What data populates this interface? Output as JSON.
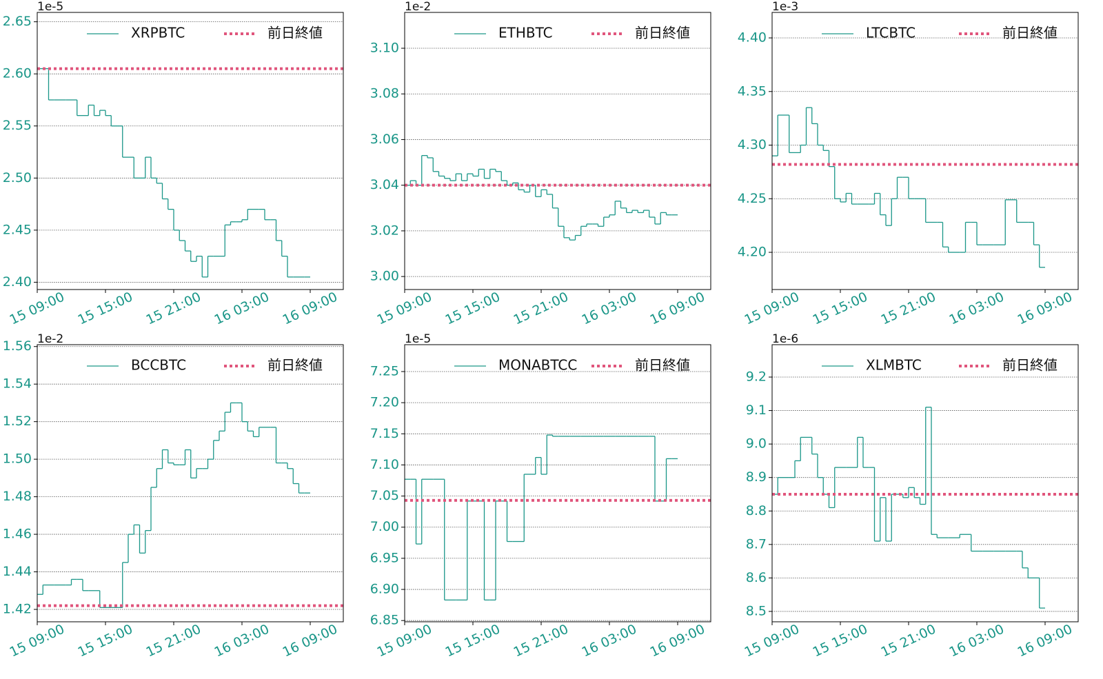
{
  "chart_data": [
    {
      "type": "line",
      "offset_label": "1e-5",
      "x": [
        "15 09:00",
        "15 09:30",
        "15 10:00",
        "15 10:30",
        "15 11:00",
        "15 11:30",
        "15 12:00",
        "15 12:30",
        "15 13:00",
        "15 13:30",
        "15 14:00",
        "15 14:30",
        "15 15:00",
        "15 15:30",
        "15 16:00",
        "15 16:30",
        "15 17:00",
        "15 17:30",
        "15 18:00",
        "15 18:30",
        "15 19:00",
        "15 19:30",
        "15 20:00",
        "15 20:30",
        "15 21:00",
        "15 21:30",
        "15 22:00",
        "15 22:30",
        "15 23:00",
        "15 23:30",
        "16 00:00",
        "16 00:30",
        "16 01:00",
        "16 01:30",
        "16 02:00",
        "16 02:30",
        "16 03:00",
        "16 03:30",
        "16 04:00",
        "16 04:30",
        "16 05:00",
        "16 05:30",
        "16 06:00",
        "16 06:30",
        "16 07:00",
        "16 07:30",
        "16 08:00",
        "16 08:30",
        "16 09:00"
      ],
      "xticks": [
        "15 09:00",
        "15 15:00",
        "15 21:00",
        "16 03:00",
        "16 09:00"
      ],
      "ylim": [
        2.393,
        2.659
      ],
      "yticks": [
        {
          "value": 2.4,
          "label": "2.40"
        },
        {
          "value": 2.45,
          "label": "2.45"
        },
        {
          "value": 2.5,
          "label": "2.50"
        },
        {
          "value": 2.55,
          "label": "2.55"
        },
        {
          "value": 2.6,
          "label": "2.60"
        },
        {
          "value": 2.65,
          "label": "2.65"
        }
      ],
      "grid": true,
      "legend": "upper right",
      "series": [
        {
          "name": "XRPBTC",
          "color": "#1a9688",
          "values": [
            2.605,
            2.605,
            2.575,
            2.575,
            2.575,
            2.575,
            2.575,
            2.56,
            2.56,
            2.57,
            2.56,
            2.565,
            2.56,
            2.55,
            2.55,
            2.52,
            2.52,
            2.5,
            2.5,
            2.52,
            2.5,
            2.495,
            2.48,
            2.47,
            2.45,
            2.44,
            2.43,
            2.42,
            2.425,
            2.405,
            2.425,
            2.425,
            2.425,
            2.455,
            2.458,
            2.458,
            2.46,
            2.47,
            2.47,
            2.47,
            2.46,
            2.46,
            2.44,
            2.425,
            2.405,
            2.405,
            2.405,
            2.405,
            null
          ]
        }
      ],
      "reference_line": {
        "name": "前日終値",
        "color": "#e0557c",
        "value": 2.605
      }
    },
    {
      "type": "line",
      "offset_label": "1e-2",
      "x": [
        "15 09:00",
        "15 09:30",
        "15 10:00",
        "15 10:30",
        "15 11:00",
        "15 11:30",
        "15 12:00",
        "15 12:30",
        "15 13:00",
        "15 13:30",
        "15 14:00",
        "15 14:30",
        "15 15:00",
        "15 15:30",
        "15 16:00",
        "15 16:30",
        "15 17:00",
        "15 17:30",
        "15 18:00",
        "15 18:30",
        "15 19:00",
        "15 19:30",
        "15 20:00",
        "15 20:30",
        "15 21:00",
        "15 21:30",
        "15 22:00",
        "15 22:30",
        "15 23:00",
        "15 23:30",
        "16 00:00",
        "16 00:30",
        "16 01:00",
        "16 01:30",
        "16 02:00",
        "16 02:30",
        "16 03:00",
        "16 03:30",
        "16 04:00",
        "16 04:30",
        "16 05:00",
        "16 05:30",
        "16 06:00",
        "16 06:30",
        "16 07:00",
        "16 07:30",
        "16 08:00",
        "16 08:30",
        "16 09:00"
      ],
      "xticks": [
        "15 09:00",
        "15 15:00",
        "15 21:00",
        "16 03:00",
        "16 09:00"
      ],
      "ylim": [
        2.9943,
        3.1157
      ],
      "yticks": [
        {
          "value": 3.0,
          "label": "3.00"
        },
        {
          "value": 3.02,
          "label": "3.02"
        },
        {
          "value": 3.04,
          "label": "3.04"
        },
        {
          "value": 3.06,
          "label": "3.06"
        },
        {
          "value": 3.08,
          "label": "3.08"
        },
        {
          "value": 3.1,
          "label": "3.10"
        }
      ],
      "grid": true,
      "legend": "upper right",
      "series": [
        {
          "name": "ETHBTC",
          "color": "#1a9688",
          "values": [
            3.04,
            3.042,
            3.04,
            3.053,
            3.052,
            3.046,
            3.044,
            3.043,
            3.042,
            3.045,
            3.042,
            3.045,
            3.044,
            3.047,
            3.043,
            3.047,
            3.046,
            3.042,
            3.04,
            3.041,
            3.038,
            3.037,
            3.04,
            3.035,
            3.038,
            3.036,
            3.03,
            3.022,
            3.017,
            3.016,
            3.018,
            3.022,
            3.023,
            3.023,
            3.022,
            3.026,
            3.027,
            3.033,
            3.03,
            3.028,
            3.029,
            3.028,
            3.029,
            3.026,
            3.023,
            3.028,
            3.027,
            3.027,
            null
          ]
        }
      ],
      "reference_line": {
        "name": "前日終値",
        "color": "#e0557c",
        "value": 3.04
      }
    },
    {
      "type": "line",
      "offset_label": "1e-3",
      "x": [
        "15 09:00",
        "15 09:30",
        "15 10:00",
        "15 10:30",
        "15 11:00",
        "15 11:30",
        "15 12:00",
        "15 12:30",
        "15 13:00",
        "15 13:30",
        "15 14:00",
        "15 14:30",
        "15 15:00",
        "15 15:30",
        "15 16:00",
        "15 16:30",
        "15 17:00",
        "15 17:30",
        "15 18:00",
        "15 18:30",
        "15 19:00",
        "15 19:30",
        "15 20:00",
        "15 20:30",
        "15 21:00",
        "15 21:30",
        "15 22:00",
        "15 22:30",
        "15 23:00",
        "15 23:30",
        "16 00:00",
        "16 00:30",
        "16 01:00",
        "16 01:30",
        "16 02:00",
        "16 02:30",
        "16 03:00",
        "16 03:30",
        "16 04:00",
        "16 04:30",
        "16 05:00",
        "16 05:30",
        "16 06:00",
        "16 06:30",
        "16 07:00",
        "16 07:30",
        "16 08:00",
        "16 08:30",
        "16 09:00"
      ],
      "xticks": [
        "15 09:00",
        "15 15:00",
        "15 21:00",
        "16 03:00",
        "16 09:00"
      ],
      "ylim": [
        4.1653,
        4.4238
      ],
      "yticks": [
        {
          "value": 4.2,
          "label": "4.20"
        },
        {
          "value": 4.25,
          "label": "4.25"
        },
        {
          "value": 4.3,
          "label": "4.30"
        },
        {
          "value": 4.35,
          "label": "4.35"
        },
        {
          "value": 4.4,
          "label": "4.40"
        }
      ],
      "grid": true,
      "legend": "upper right",
      "series": [
        {
          "name": "LTCBTC",
          "color": "#1a9688",
          "values": [
            4.29,
            4.328,
            4.328,
            4.293,
            4.293,
            4.3,
            4.335,
            4.32,
            4.3,
            4.295,
            4.28,
            4.25,
            4.247,
            4.255,
            4.245,
            4.245,
            4.245,
            4.245,
            4.255,
            4.235,
            4.225,
            4.25,
            4.27,
            4.27,
            4.25,
            4.25,
            4.25,
            4.228,
            4.228,
            4.228,
            4.205,
            4.2,
            4.2,
            4.2,
            4.228,
            4.228,
            4.207,
            4.207,
            4.207,
            4.207,
            4.207,
            4.249,
            4.249,
            4.228,
            4.228,
            4.228,
            4.207,
            4.186,
            null
          ]
        }
      ],
      "reference_line": {
        "name": "前日終値",
        "color": "#e0557c",
        "value": 4.282
      }
    },
    {
      "type": "line",
      "offset_label": "1e-2",
      "x": [
        "15 09:00",
        "15 09:30",
        "15 10:00",
        "15 10:30",
        "15 11:00",
        "15 11:30",
        "15 12:00",
        "15 12:30",
        "15 13:00",
        "15 13:30",
        "15 14:00",
        "15 14:30",
        "15 15:00",
        "15 15:30",
        "15 16:00",
        "15 16:30",
        "15 17:00",
        "15 17:30",
        "15 18:00",
        "15 18:30",
        "15 19:00",
        "15 19:30",
        "15 20:00",
        "15 20:30",
        "15 21:00",
        "15 21:30",
        "15 22:00",
        "15 22:30",
        "15 23:00",
        "15 23:30",
        "16 00:00",
        "16 00:30",
        "16 01:00",
        "16 01:30",
        "16 02:00",
        "16 02:30",
        "16 03:00",
        "16 03:30",
        "16 04:00",
        "16 04:30",
        "16 05:00",
        "16 05:30",
        "16 06:00",
        "16 06:30",
        "16 07:00",
        "16 07:30",
        "16 08:00",
        "16 08:30",
        "16 09:00"
      ],
      "xticks": [
        "15 09:00",
        "15 15:00",
        "15 21:00",
        "16 03:00",
        "16 09:00"
      ],
      "ylim": [
        1.4134,
        1.561
      ],
      "yticks": [
        {
          "value": 1.42,
          "label": "1.42"
        },
        {
          "value": 1.44,
          "label": "1.44"
        },
        {
          "value": 1.46,
          "label": "1.46"
        },
        {
          "value": 1.48,
          "label": "1.48"
        },
        {
          "value": 1.5,
          "label": "1.50"
        },
        {
          "value": 1.52,
          "label": "1.52"
        },
        {
          "value": 1.54,
          "label": "1.54"
        },
        {
          "value": 1.56,
          "label": "1.56"
        }
      ],
      "grid": true,
      "legend": "upper right",
      "series": [
        {
          "name": "BCCBTC",
          "color": "#1a9688",
          "values": [
            1.428,
            1.433,
            1.433,
            1.433,
            1.433,
            1.433,
            1.436,
            1.436,
            1.43,
            1.43,
            1.43,
            1.421,
            1.421,
            1.421,
            1.421,
            1.445,
            1.46,
            1.465,
            1.45,
            1.462,
            1.485,
            1.495,
            1.505,
            1.498,
            1.497,
            1.497,
            1.505,
            1.49,
            1.495,
            1.495,
            1.5,
            1.51,
            1.515,
            1.525,
            1.53,
            1.53,
            1.52,
            1.515,
            1.512,
            1.517,
            1.517,
            1.517,
            1.498,
            1.498,
            1.495,
            1.487,
            1.482,
            1.482,
            null
          ]
        }
      ],
      "reference_line": {
        "name": "前日終値",
        "color": "#e0557c",
        "value": 1.422
      }
    },
    {
      "type": "line",
      "offset_label": "1e-5",
      "x": [
        "15 09:00",
        "15 09:30",
        "15 10:00",
        "15 10:30",
        "15 11:00",
        "15 11:30",
        "15 12:00",
        "15 12:30",
        "15 13:00",
        "15 13:30",
        "15 14:00",
        "15 14:30",
        "15 15:00",
        "15 15:30",
        "15 16:00",
        "15 16:30",
        "15 17:00",
        "15 17:30",
        "15 18:00",
        "15 18:30",
        "15 19:00",
        "15 19:30",
        "15 20:00",
        "15 20:30",
        "15 21:00",
        "15 21:30",
        "15 22:00",
        "15 22:30",
        "15 23:00",
        "15 23:30",
        "16 00:00",
        "16 00:30",
        "16 01:00",
        "16 01:30",
        "16 02:00",
        "16 02:30",
        "16 03:00",
        "16 03:30",
        "16 04:00",
        "16 04:30",
        "16 05:00",
        "16 05:30",
        "16 06:00",
        "16 06:30",
        "16 07:00",
        "16 07:30",
        "16 08:00",
        "16 08:30",
        "16 09:00"
      ],
      "xticks": [
        "15 09:00",
        "15 15:00",
        "15 21:00",
        "16 03:00",
        "16 09:00"
      ],
      "ylim": [
        6.848,
        7.2932
      ],
      "yticks": [
        {
          "value": 6.85,
          "label": "6.85"
        },
        {
          "value": 6.9,
          "label": "6.90"
        },
        {
          "value": 6.95,
          "label": "6.95"
        },
        {
          "value": 7.0,
          "label": "7.00"
        },
        {
          "value": 7.05,
          "label": "7.05"
        },
        {
          "value": 7.1,
          "label": "7.10"
        },
        {
          "value": 7.15,
          "label": "7.15"
        },
        {
          "value": 7.2,
          "label": "7.20"
        },
        {
          "value": 7.25,
          "label": "7.25"
        }
      ],
      "grid": true,
      "legend": "upper right",
      "series": [
        {
          "name": "MONABTCC",
          "color": "#1a9688",
          "values": [
            7.077,
            7.077,
            6.973,
            7.077,
            7.077,
            7.077,
            7.077,
            6.883,
            6.883,
            6.883,
            6.883,
            7.042,
            7.042,
            7.042,
            6.883,
            6.883,
            7.042,
            7.042,
            6.977,
            6.977,
            6.977,
            7.085,
            7.085,
            7.112,
            7.085,
            7.148,
            7.146,
            7.146,
            7.146,
            7.146,
            7.146,
            7.146,
            7.146,
            7.146,
            7.146,
            7.146,
            7.146,
            7.146,
            7.146,
            7.146,
            7.146,
            7.146,
            7.146,
            7.146,
            7.042,
            7.042,
            7.11,
            7.11,
            null
          ]
        }
      ],
      "reference_line": {
        "name": "前日終値",
        "color": "#e0557c",
        "value": 7.043
      }
    },
    {
      "type": "line",
      "offset_label": "1e-6",
      "x": [
        "15 09:00",
        "15 09:30",
        "15 10:00",
        "15 10:30",
        "15 11:00",
        "15 11:30",
        "15 12:00",
        "15 12:30",
        "15 13:00",
        "15 13:30",
        "15 14:00",
        "15 14:30",
        "15 15:00",
        "15 15:30",
        "15 16:00",
        "15 16:30",
        "15 17:00",
        "15 17:30",
        "15 18:00",
        "15 18:30",
        "15 19:00",
        "15 19:30",
        "15 20:00",
        "15 20:30",
        "15 21:00",
        "15 21:30",
        "15 22:00",
        "15 22:30",
        "15 23:00",
        "15 23:30",
        "16 00:00",
        "16 00:30",
        "16 01:00",
        "16 01:30",
        "16 02:00",
        "16 02:30",
        "16 03:00",
        "16 03:30",
        "16 04:00",
        "16 04:30",
        "16 05:00",
        "16 05:30",
        "16 06:00",
        "16 06:30",
        "16 07:00",
        "16 07:30",
        "16 08:00",
        "16 08:30",
        "16 09:00"
      ],
      "xticks": [
        "15 09:00",
        "15 15:00",
        "15 21:00",
        "16 03:00",
        "16 09:00"
      ],
      "ylim": [
        8.469,
        9.2968
      ],
      "yticks": [
        8.5,
        8.6,
        8.7,
        8.8,
        8.9,
        {
          "value": 9.0,
          "label": "9.0"
        },
        9.1,
        9.2
      ],
      "grid": true,
      "legend": "upper right",
      "series": [
        {
          "name": "XLMBTC",
          "color": "#1a9688",
          "values": [
            8.85,
            8.9,
            8.9,
            8.9,
            8.95,
            9.02,
            9.02,
            8.97,
            8.9,
            8.85,
            8.81,
            8.93,
            8.93,
            8.93,
            8.93,
            9.02,
            8.93,
            8.93,
            8.71,
            8.84,
            8.71,
            8.85,
            8.85,
            8.84,
            8.87,
            8.84,
            8.82,
            9.11,
            8.73,
            8.72,
            8.72,
            8.72,
            8.72,
            8.73,
            8.73,
            8.68,
            8.68,
            8.68,
            8.68,
            8.68,
            8.68,
            8.68,
            8.68,
            8.68,
            8.63,
            8.6,
            8.6,
            8.51,
            null
          ]
        }
      ],
      "reference_line": {
        "name": "前日終値",
        "color": "#e0557c",
        "value": 8.85
      }
    }
  ]
}
